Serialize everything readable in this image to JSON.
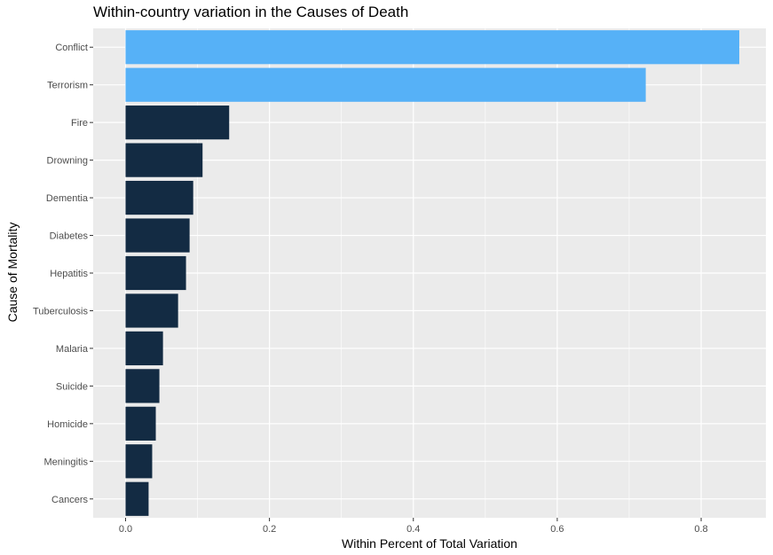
{
  "chart_data": {
    "type": "bar",
    "orientation": "horizontal",
    "title": "Within-country variation in the Causes of Death",
    "xlabel": "Within Percent of Total Variation",
    "ylabel": "Cause of Mortality",
    "categories": [
      "Conflict",
      "Terrorism",
      "Fire",
      "Drowning",
      "Dementia",
      "Diabetes",
      "Hepatitis",
      "Tuberculosis",
      "Malaria",
      "Suicide",
      "Homicide",
      "Meningitis",
      "Cancers"
    ],
    "values": [
      0.853,
      0.723,
      0.144,
      0.107,
      0.094,
      0.089,
      0.084,
      0.073,
      0.052,
      0.047,
      0.042,
      0.037,
      0.032
    ],
    "highlighted": [
      "Conflict",
      "Terrorism"
    ],
    "xlim": [
      -0.045,
      0.89
    ],
    "xticks": [
      "0.0",
      "0.2",
      "0.4",
      "0.6",
      "0.8"
    ],
    "grid": true,
    "legend": "none",
    "colors": {
      "panel": "#ebebeb",
      "grid": "#ffffff",
      "highlight": "#56b1f7",
      "default": "#132b43"
    }
  }
}
